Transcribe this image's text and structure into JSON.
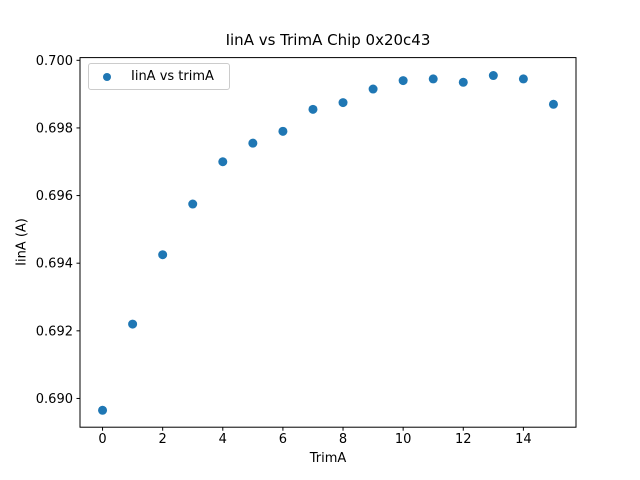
{
  "chart_data": {
    "type": "scatter",
    "title": "IinA vs TrimA Chip 0x20c43",
    "xlabel": "TrimA",
    "ylabel": "IinA (A)",
    "xlim": [
      -0.75,
      15.75
    ],
    "ylim": [
      0.68915,
      0.70008
    ],
    "xticks": [
      0,
      2,
      4,
      6,
      8,
      10,
      12,
      14
    ],
    "xtick_labels": [
      "0",
      "2",
      "4",
      "6",
      "8",
      "10",
      "12",
      "14"
    ],
    "yticks": [
      0.69,
      0.692,
      0.694,
      0.696,
      0.698,
      0.7
    ],
    "ytick_labels": [
      "0.690",
      "0.692",
      "0.694",
      "0.696",
      "0.698",
      "0.700"
    ],
    "grid": false,
    "legend_position": "upper left",
    "series": [
      {
        "name": "IinA vs trimA",
        "color": "#1f77b4",
        "x": [
          0,
          1,
          2,
          3,
          4,
          5,
          6,
          7,
          8,
          9,
          10,
          11,
          12,
          13,
          14,
          15
        ],
        "y": [
          0.68965,
          0.6922,
          0.69425,
          0.69575,
          0.697,
          0.69755,
          0.6979,
          0.69855,
          0.69875,
          0.69915,
          0.6994,
          0.69945,
          0.69935,
          0.69955,
          0.69945,
          0.6987
        ]
      }
    ]
  }
}
